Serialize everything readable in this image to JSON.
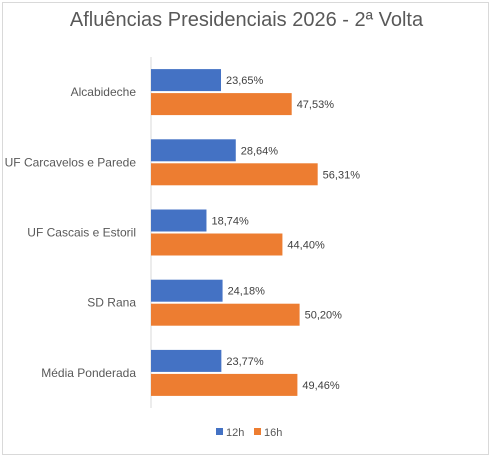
{
  "chart_data": {
    "type": "bar",
    "orientation": "horizontal",
    "title": "Afluências Presidenciais 2026 - 2ª Volta",
    "categories": [
      "Alcabideche",
      "UF Carcavelos e Parede",
      "UF Cascais e Estoril",
      "SD Rana",
      "Média Ponderada"
    ],
    "series": [
      {
        "name": "12h",
        "color": "#4472c4",
        "values": [
          23.65,
          28.64,
          18.74,
          24.18,
          23.77
        ],
        "labels": [
          "23,65%",
          "28,64%",
          "18,74%",
          "24,18%",
          "23,77%"
        ]
      },
      {
        "name": "16h",
        "color": "#ed7d31",
        "values": [
          47.53,
          56.31,
          44.4,
          50.2,
          49.46
        ],
        "labels": [
          "47,53%",
          "56,31%",
          "44,40%",
          "50,20%",
          "49,46%"
        ]
      }
    ],
    "xlim": [
      0,
      100
    ],
    "grid": false,
    "legend": "bottom"
  }
}
